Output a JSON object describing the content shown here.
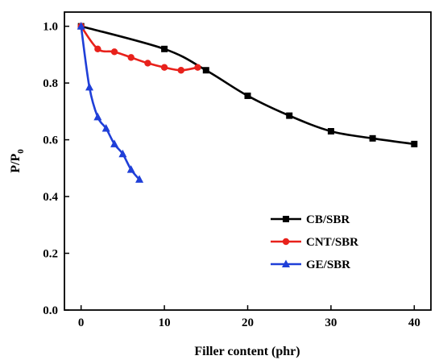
{
  "chart_data": {
    "type": "line",
    "xlabel": "Filler content (phr)",
    "ylabel_main": "P/P",
    "ylabel_sub": "0",
    "xlim": [
      -2,
      42
    ],
    "ylim": [
      0,
      1.05
    ],
    "xticks": [
      0,
      10,
      20,
      30,
      40
    ],
    "yticks": [
      0.0,
      0.2,
      0.4,
      0.6,
      0.8,
      1.0
    ],
    "xtick_labels": [
      "0",
      "10",
      "20",
      "30",
      "40"
    ],
    "ytick_labels": [
      "0.0",
      "0.2",
      "0.4",
      "0.6",
      "0.8",
      "1.0"
    ],
    "grid": false,
    "legend_position": "lower-right",
    "series": [
      {
        "name": "CB/SBR",
        "color": "#000000",
        "marker": "square",
        "x": [
          0,
          10,
          15,
          20,
          25,
          30,
          35,
          40
        ],
        "y": [
          1.0,
          0.92,
          0.845,
          0.755,
          0.685,
          0.63,
          0.605,
          0.585
        ]
      },
      {
        "name": "CNT/SBR",
        "color": "#e8211b",
        "marker": "circle",
        "x": [
          0,
          2,
          4,
          6,
          8,
          10,
          12,
          14
        ],
        "y": [
          1.0,
          0.92,
          0.91,
          0.89,
          0.87,
          0.855,
          0.845,
          0.855
        ]
      },
      {
        "name": "GE/SBR",
        "color": "#1f3fd8",
        "marker": "triangle",
        "x": [
          0,
          1,
          2,
          3,
          4,
          5,
          6,
          7
        ],
        "y": [
          1.0,
          0.785,
          0.68,
          0.64,
          0.585,
          0.55,
          0.495,
          0.46
        ]
      }
    ]
  }
}
